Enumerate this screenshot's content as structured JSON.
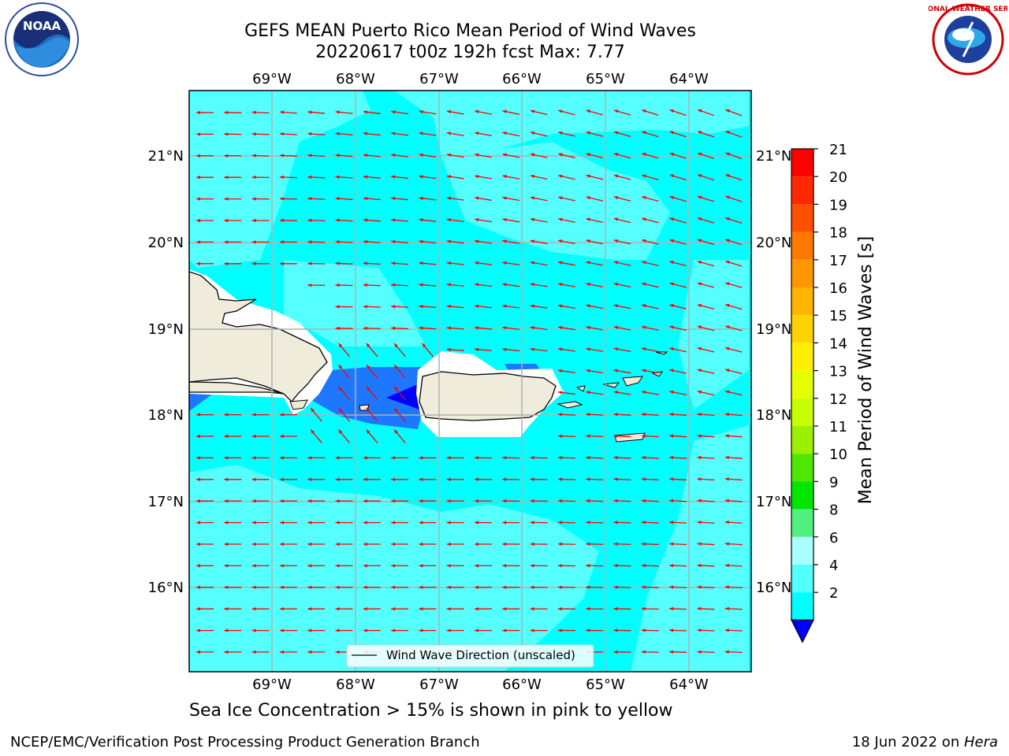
{
  "title": {
    "line1": "GEFS MEAN Puerto Rico Mean Period of Wind Waves",
    "line2": "20220617 t00z 192h fcst   Max: 7.77"
  },
  "axes": {
    "lon_labels": [
      "69°W",
      "68°W",
      "67°W",
      "66°W",
      "65°W",
      "64°W"
    ],
    "lat_labels": [
      "21°N",
      "20°N",
      "19°N",
      "18°N",
      "17°N",
      "16°N"
    ]
  },
  "legend": {
    "label": "Wind Wave Direction (unscaled)"
  },
  "colorbar": {
    "label": "Mean Period of Wind Waves [s]",
    "ticks": [
      "21",
      "20",
      "19",
      "18",
      "17",
      "16",
      "15",
      "14",
      "13",
      "12",
      "11",
      "10",
      "9",
      "8",
      "6",
      "4",
      "2"
    ],
    "colors": [
      "#ff0000",
      "#ff2800",
      "#ff5000",
      "#ff7800",
      "#ff9600",
      "#ffb400",
      "#ffd200",
      "#fff000",
      "#e6ff00",
      "#c8ff00",
      "#9bf000",
      "#50e600",
      "#00e600",
      "#50f07f",
      "#aaffff",
      "#55ffff",
      "#00ffff",
      "#0096ff",
      "#0000ff"
    ],
    "extend_below_color": "#0000ff"
  },
  "note": "Sea Ice Concentration > 15% is shown in pink to yellow",
  "footer": {
    "left": "NCEP/EMC/Verification Post Processing Product Generation Branch",
    "right_date": "18 Jun 2022 on ",
    "right_host": "Hera"
  },
  "logos": {
    "noaa_text": "NOAA",
    "nws_text": "NATIONAL WEATHER SERVICE"
  },
  "colors": {
    "ocean_main": "#00ffff",
    "ocean_light": "#55ffff",
    "ocean_blue": "#1e78ff",
    "land": "#efecdc",
    "arrow": "#ff0000",
    "grid": "#b0b0b0"
  }
}
